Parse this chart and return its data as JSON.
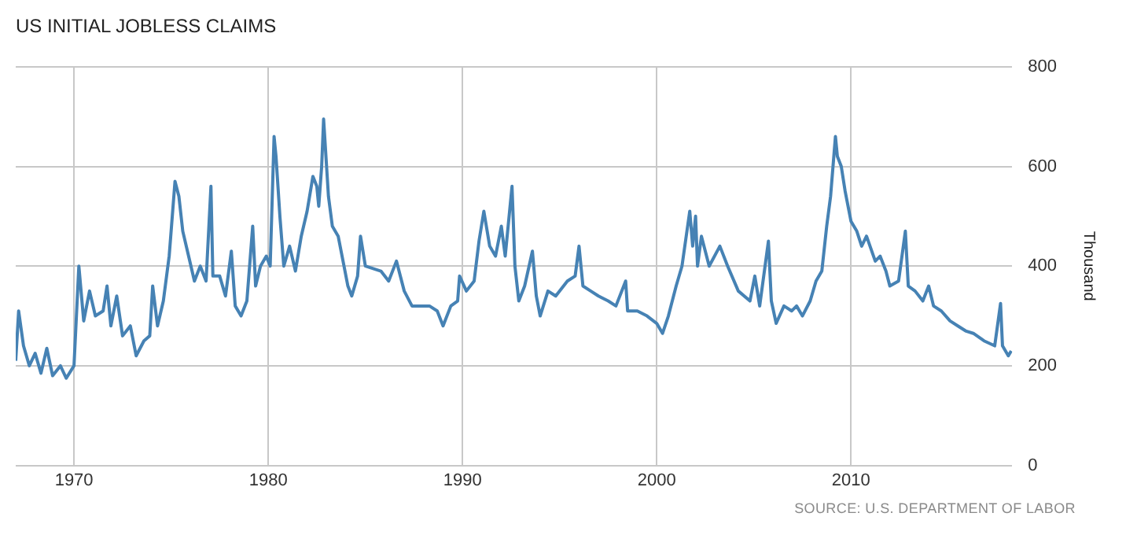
{
  "chart_data": {
    "type": "line",
    "title": "US INITIAL JOBLESS CLAIMS",
    "ylabel": "Thousand",
    "annotations": [
      "SOURCE: U.S. DEPARTMENT OF LABOR"
    ],
    "xlim": [
      1967,
      2018.3
    ],
    "xticks": [
      1970,
      1980,
      1990,
      2000,
      2010
    ],
    "ylim": [
      0,
      800
    ],
    "yticks": [
      0,
      200,
      400,
      600,
      800
    ],
    "grid": true,
    "marker": "none",
    "line_style": "solid",
    "series": [
      {
        "color": "#4682b4",
        "x": [
          1967.0,
          1967.15,
          1967.4,
          1967.7,
          1968.0,
          1968.3,
          1968.6,
          1968.9,
          1969.3,
          1969.6,
          1970.0,
          1970.25,
          1970.5,
          1970.8,
          1971.1,
          1971.5,
          1971.7,
          1971.9,
          1972.2,
          1972.5,
          1972.9,
          1973.2,
          1973.6,
          1973.9,
          1974.05,
          1974.3,
          1974.6,
          1974.9,
          1975.2,
          1975.4,
          1975.6,
          1975.9,
          1976.2,
          1976.5,
          1976.8,
          1977.05,
          1977.15,
          1977.5,
          1977.8,
          1978.1,
          1978.3,
          1978.6,
          1978.9,
          1979.2,
          1979.35,
          1979.6,
          1979.9,
          1980.1,
          1980.3,
          1980.4,
          1980.6,
          1980.8,
          1981.1,
          1981.4,
          1981.7,
          1982.0,
          1982.3,
          1982.5,
          1982.6,
          1982.75,
          1982.85,
          1983.1,
          1983.3,
          1983.6,
          1983.9,
          1984.1,
          1984.3,
          1984.6,
          1984.75,
          1985.0,
          1985.8,
          1986.2,
          1986.6,
          1987.0,
          1987.4,
          1987.8,
          1988.3,
          1988.7,
          1989.0,
          1989.4,
          1989.75,
          1989.85,
          1990.2,
          1990.6,
          1990.85,
          1991.1,
          1991.4,
          1991.7,
          1992.0,
          1992.2,
          1992.55,
          1992.7,
          1992.9,
          1993.2,
          1993.6,
          1993.8,
          1994.0,
          1994.4,
          1994.8,
          1995.4,
          1995.8,
          1996.0,
          1996.2,
          1996.6,
          1997.0,
          1997.5,
          1997.9,
          1998.4,
          1998.5,
          1999.0,
          1999.5,
          2000.0,
          2000.3,
          2000.6,
          2001.0,
          2001.3,
          2001.7,
          2001.85,
          2002.0,
          2002.1,
          2002.3,
          2002.7,
          2003.25,
          2003.65,
          2004.2,
          2004.8,
          2005.05,
          2005.3,
          2005.75,
          2005.9,
          2006.15,
          2006.55,
          2006.95,
          2007.2,
          2007.5,
          2007.9,
          2008.2,
          2008.5,
          2008.75,
          2008.95,
          2009.2,
          2009.3,
          2009.5,
          2009.7,
          2010.0,
          2010.3,
          2010.55,
          2010.8,
          2011.25,
          2011.5,
          2011.8,
          2012.0,
          2012.45,
          2012.8,
          2012.95,
          2013.3,
          2013.7,
          2014.0,
          2014.25,
          2014.65,
          2015.1,
          2015.5,
          2015.9,
          2016.3,
          2016.85,
          2017.4,
          2017.7,
          2017.8,
          2018.1,
          2018.25
        ],
        "values": [
          210,
          310,
          240,
          200,
          225,
          185,
          235,
          180,
          200,
          175,
          200,
          400,
          290,
          350,
          300,
          310,
          360,
          280,
          340,
          260,
          280,
          220,
          250,
          260,
          360,
          280,
          330,
          420,
          570,
          540,
          470,
          420,
          370,
          400,
          370,
          560,
          380,
          380,
          340,
          430,
          320,
          300,
          330,
          480,
          360,
          400,
          420,
          400,
          660,
          620,
          500,
          400,
          440,
          390,
          460,
          510,
          580,
          560,
          520,
          600,
          695,
          540,
          480,
          460,
          400,
          360,
          340,
          380,
          460,
          400,
          390,
          370,
          410,
          350,
          320,
          320,
          320,
          310,
          280,
          320,
          330,
          380,
          350,
          370,
          450,
          510,
          440,
          420,
          480,
          420,
          560,
          400,
          330,
          360,
          430,
          340,
          300,
          350,
          340,
          370,
          380,
          440,
          360,
          350,
          340,
          330,
          320,
          370,
          310,
          310,
          300,
          285,
          265,
          300,
          360,
          400,
          510,
          440,
          500,
          400,
          460,
          400,
          440,
          400,
          350,
          330,
          380,
          320,
          450,
          330,
          285,
          320,
          310,
          320,
          300,
          330,
          370,
          390,
          480,
          540,
          660,
          620,
          600,
          550,
          490,
          470,
          440,
          460,
          410,
          420,
          390,
          360,
          370,
          470,
          360,
          350,
          330,
          360,
          320,
          310,
          290,
          280,
          270,
          265,
          250,
          240,
          325,
          240,
          220,
          230
        ]
      }
    ]
  }
}
